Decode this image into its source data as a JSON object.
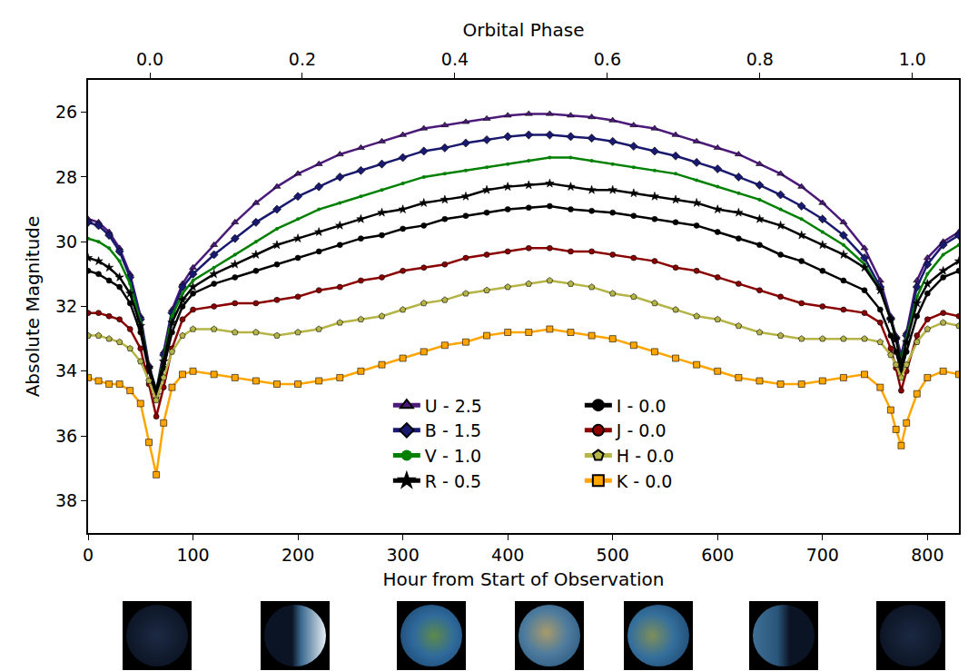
{
  "chart_data": {
    "type": "scatter",
    "x_title": "Hour from Start of Observation",
    "x2_title": "Orbital Phase",
    "y_title": "Absolute Magnitude",
    "xlim": [
      0,
      830
    ],
    "xticks": [
      0,
      100,
      200,
      300,
      400,
      500,
      600,
      700,
      800
    ],
    "x2lim": [
      -0.081,
      1.061
    ],
    "x2ticks": [
      {
        "value": 0,
        "label": "0.0"
      },
      0.2,
      0.4,
      0.6,
      0.8,
      {
        "value": 1,
        "label": "1.0"
      }
    ],
    "ylim": [
      39,
      25
    ],
    "yticks": [
      26,
      28,
      30,
      32,
      34,
      36,
      38
    ],
    "grid": false,
    "legend": "lower center",
    "x": [
      0,
      10,
      20,
      30,
      40,
      50,
      58,
      65,
      72,
      80,
      90,
      100,
      120,
      140,
      160,
      180,
      200,
      220,
      240,
      260,
      280,
      300,
      320,
      340,
      360,
      380,
      400,
      420,
      440,
      460,
      480,
      500,
      520,
      540,
      560,
      580,
      600,
      620,
      640,
      660,
      680,
      700,
      720,
      740,
      755,
      765,
      770,
      775,
      780,
      790,
      800,
      815,
      830
    ],
    "series": [
      {
        "name": "U - 2.5",
        "color": "#4b1a7a",
        "marker": "triangle",
        "values": [
          29.3,
          29.4,
          29.7,
          30.2,
          31.0,
          32.3,
          33.8,
          34.6,
          33.4,
          32.1,
          31.3,
          30.8,
          30.1,
          29.4,
          28.8,
          28.3,
          27.9,
          27.6,
          27.3,
          27.1,
          26.9,
          26.7,
          26.5,
          26.4,
          26.3,
          26.2,
          26.1,
          26.05,
          26.05,
          26.1,
          26.15,
          26.25,
          26.4,
          26.5,
          26.7,
          26.9,
          27.1,
          27.3,
          27.6,
          27.9,
          28.3,
          28.8,
          29.4,
          30.2,
          31.2,
          32.3,
          32.9,
          33.5,
          32.8,
          31.2,
          30.5,
          30.0,
          29.7
        ]
      },
      {
        "name": "B - 1.5",
        "color": "#191970",
        "marker": "diamond",
        "values": [
          29.4,
          29.5,
          29.8,
          30.3,
          31.1,
          32.4,
          33.9,
          34.7,
          33.5,
          32.2,
          31.4,
          31.0,
          30.4,
          29.9,
          29.4,
          29.0,
          28.6,
          28.3,
          28.0,
          27.8,
          27.6,
          27.4,
          27.2,
          27.1,
          26.95,
          26.85,
          26.75,
          26.7,
          26.7,
          26.75,
          26.8,
          26.9,
          27.05,
          27.2,
          27.35,
          27.55,
          27.75,
          28.0,
          28.25,
          28.55,
          28.9,
          29.3,
          29.8,
          30.5,
          31.4,
          32.4,
          33.0,
          33.6,
          32.9,
          31.4,
          30.7,
          30.1,
          29.8
        ]
      },
      {
        "name": "V - 1.0",
        "color": "#008000",
        "marker": "point",
        "values": [
          29.9,
          30.0,
          30.2,
          30.6,
          31.3,
          32.5,
          33.9,
          34.6,
          33.6,
          32.3,
          31.6,
          31.2,
          30.8,
          30.4,
          30.0,
          29.6,
          29.3,
          29.0,
          28.8,
          28.6,
          28.4,
          28.2,
          28.0,
          27.9,
          27.8,
          27.7,
          27.6,
          27.5,
          27.4,
          27.4,
          27.5,
          27.6,
          27.7,
          27.8,
          27.9,
          28.1,
          28.3,
          28.5,
          28.7,
          29.0,
          29.3,
          29.7,
          30.1,
          30.7,
          31.5,
          32.4,
          33.0,
          33.7,
          33.0,
          31.7,
          31.0,
          30.4,
          30.1
        ]
      },
      {
        "name": "R - 0.5",
        "color": "#000000",
        "marker": "star",
        "values": [
          30.5,
          30.6,
          30.8,
          31.1,
          31.6,
          32.6,
          33.9,
          34.6,
          33.7,
          32.5,
          31.8,
          31.4,
          31.0,
          30.7,
          30.4,
          30.1,
          29.9,
          29.7,
          29.5,
          29.3,
          29.1,
          29.0,
          28.8,
          28.7,
          28.6,
          28.4,
          28.3,
          28.25,
          28.2,
          28.3,
          28.4,
          28.4,
          28.5,
          28.6,
          28.7,
          28.8,
          29.0,
          29.1,
          29.3,
          29.5,
          29.8,
          30.1,
          30.4,
          30.8,
          31.5,
          32.4,
          33.0,
          33.8,
          33.1,
          31.9,
          31.3,
          30.9,
          30.6
        ]
      },
      {
        "name": "I - 0.0",
        "color": "#000000",
        "marker": "circle",
        "values": [
          30.9,
          31.0,
          31.2,
          31.4,
          31.9,
          32.8,
          34.0,
          34.8,
          33.9,
          32.8,
          32.0,
          31.6,
          31.3,
          31.1,
          30.9,
          30.7,
          30.5,
          30.3,
          30.1,
          29.9,
          29.8,
          29.6,
          29.5,
          29.3,
          29.2,
          29.1,
          29.0,
          28.95,
          28.9,
          29.0,
          29.05,
          29.1,
          29.2,
          29.3,
          29.4,
          29.5,
          29.7,
          29.9,
          30.1,
          30.4,
          30.6,
          30.9,
          31.2,
          31.5,
          32.1,
          32.9,
          33.4,
          34.0,
          33.4,
          32.3,
          31.6,
          31.1,
          30.9
        ]
      },
      {
        "name": "J - 0.0",
        "color": "#8b0000",
        "marker": "circle",
        "values": [
          32.2,
          32.2,
          32.3,
          32.4,
          32.7,
          33.3,
          34.4,
          35.4,
          34.5,
          33.3,
          32.4,
          32.1,
          32.0,
          31.9,
          31.9,
          31.8,
          31.7,
          31.5,
          31.4,
          31.2,
          31.1,
          30.9,
          30.8,
          30.7,
          30.5,
          30.4,
          30.3,
          30.2,
          30.2,
          30.3,
          30.3,
          30.4,
          30.5,
          30.6,
          30.8,
          30.9,
          31.1,
          31.3,
          31.5,
          31.7,
          31.9,
          32.0,
          32.1,
          32.2,
          32.5,
          33.3,
          33.9,
          34.6,
          34.0,
          32.9,
          32.4,
          32.2,
          32.3
        ]
      },
      {
        "name": "H - 0.0",
        "color": "#b5b447",
        "marker": "pentagon",
        "values": [
          32.9,
          32.9,
          33.0,
          33.1,
          33.3,
          33.7,
          34.3,
          34.9,
          34.2,
          33.4,
          32.9,
          32.7,
          32.7,
          32.8,
          32.8,
          32.9,
          32.8,
          32.7,
          32.5,
          32.4,
          32.3,
          32.1,
          31.9,
          31.8,
          31.6,
          31.5,
          31.4,
          31.3,
          31.2,
          31.3,
          31.4,
          31.6,
          31.7,
          31.9,
          32.1,
          32.3,
          32.4,
          32.6,
          32.8,
          32.9,
          33.0,
          33.0,
          33.0,
          33.0,
          33.1,
          33.5,
          33.8,
          34.2,
          33.8,
          33.1,
          32.7,
          32.5,
          32.6
        ]
      },
      {
        "name": "K - 0.0",
        "color": "#ffa500",
        "marker": "square",
        "values": [
          34.2,
          34.3,
          34.4,
          34.4,
          34.6,
          35.0,
          36.2,
          37.2,
          35.6,
          34.5,
          34.1,
          34.0,
          34.1,
          34.2,
          34.3,
          34.4,
          34.4,
          34.3,
          34.2,
          34.0,
          33.8,
          33.6,
          33.4,
          33.2,
          33.1,
          32.9,
          32.8,
          32.8,
          32.7,
          32.8,
          32.9,
          33.0,
          33.2,
          33.4,
          33.6,
          33.8,
          34.0,
          34.2,
          34.3,
          34.4,
          34.4,
          34.3,
          34.2,
          34.1,
          34.5,
          35.2,
          35.8,
          36.3,
          35.6,
          34.7,
          34.2,
          34.0,
          34.1
        ]
      }
    ]
  }
}
